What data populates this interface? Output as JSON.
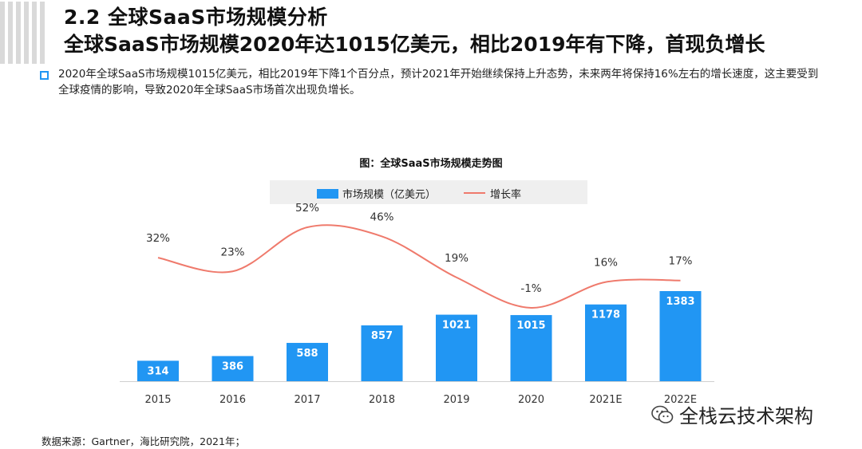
{
  "header": {
    "section_title": "2.2 全球SaaS市场规模分析",
    "headline": "全球SaaS市场规模2020年达1015亿美元，相比2019年有下降，首现负增长"
  },
  "summary": {
    "text": "2020年全球SaaS市场规模1015亿美元，相比2019年下降1个百分点，预计2021年开始继续保持上升态势，未来两年将保持16%左右的增长速度，这主要受到全球疫情的影响，导致2020年全球SaaS市场首次出现负增长。"
  },
  "chart_data": {
    "type": "bar+line",
    "title": "图：全球SaaS市场规模走势图",
    "categories": [
      "2015",
      "2016",
      "2017",
      "2018",
      "2019",
      "2020",
      "2021E",
      "2022E"
    ],
    "series": [
      {
        "name": "市场规模（亿美元）",
        "type": "bar",
        "color": "#2196f3",
        "values": [
          314,
          386,
          588,
          857,
          1021,
          1015,
          1178,
          1383
        ],
        "labels": [
          "314",
          "386",
          "588",
          "857",
          "1021",
          "1015",
          "1178",
          "1383"
        ]
      },
      {
        "name": "增长率",
        "type": "line",
        "color": "#ef7a6c",
        "values": [
          32,
          23,
          52,
          46,
          19,
          -1,
          16,
          17
        ],
        "labels": [
          "32%",
          "23%",
          "52%",
          "46%",
          "19%",
          "-1%",
          "16%",
          "17%"
        ]
      }
    ],
    "bar_ylim": [
      0,
      1383
    ],
    "line_ylim": [
      -1,
      52
    ]
  },
  "source": "数据来源：Gartner，海比研究院，2021年；",
  "watermark": {
    "text": "全栈云技术架构",
    "icon": "wechat-icon"
  }
}
